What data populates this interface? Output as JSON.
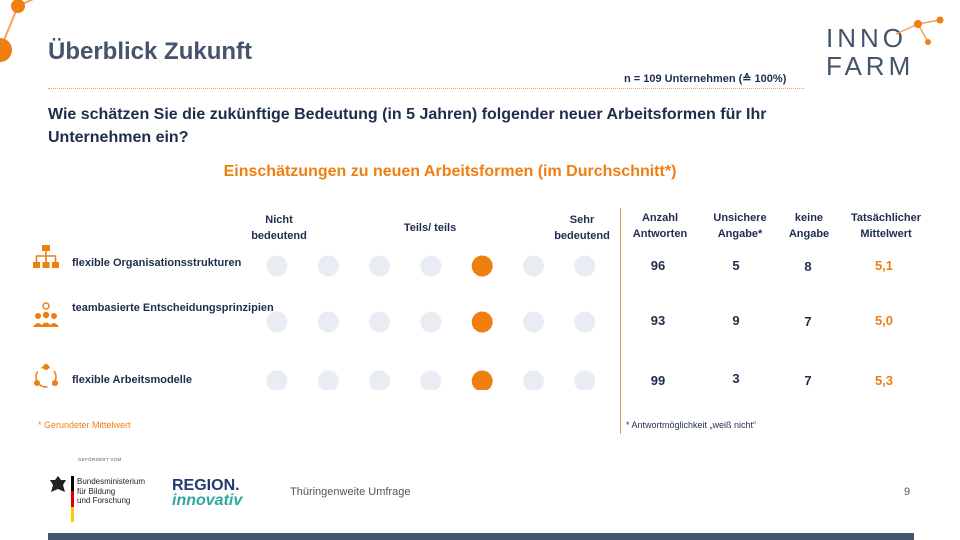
{
  "title": "Überblick Zukunft",
  "sample_note": "n = 109 Unternehmen (≙ 100%)",
  "question": "Wie schätzen Sie die zukünftige Bedeutung (in 5 Jahren) folgender neuer Arbeitsformen für Ihr Unternehmen ein?",
  "logo": {
    "line1": "INNO",
    "line2": "FARM"
  },
  "colors": {
    "accent": "#f07f12",
    "dot_inactive": "#e9ecf3",
    "text_dark": "#1f2d4d",
    "bar": "#44546a"
  },
  "chart_data": {
    "type": "table",
    "title": "Einschätzungen zu neuen Arbeitsformen (im Durchschnitt*)",
    "scale_labels": {
      "low": "Nicht bedeutend",
      "mid": "Teils/ teils",
      "high": "Sehr bedeutend"
    },
    "scale_points": 7,
    "columns": [
      "Anzahl Antworten",
      "Unsichere Angabe*",
      "keine Angabe",
      "Tatsächlicher Mittelwert"
    ],
    "rows": [
      {
        "label": "flexible Organisationsstrukturen",
        "icon": "org-chart-icon",
        "rounded_mean": 5,
        "answers": "96",
        "unsure": "5",
        "no_answer": "8",
        "mean": "5,1"
      },
      {
        "label": "teambasierte Entscheidungsprinzipien",
        "icon": "team-icon",
        "rounded_mean": 5,
        "answers": "93",
        "unsure": "9",
        "no_answer": "7",
        "mean": "5,0"
      },
      {
        "label": "flexible Arbeitsmodelle",
        "icon": "cycle-people-icon",
        "rounded_mean": 5,
        "answers": "99",
        "unsure": "3",
        "no_answer": "7",
        "mean": "5,3"
      }
    ]
  },
  "footnote_left": "* Gerundeter Mittelwert",
  "footnote_right": "* Antwortmöglichkeit „weiß nicht“",
  "footer": {
    "funded_by": "GEFÖRDERT VOM",
    "ministry": "Bundesministerium für Bildung und Forschung",
    "ministry_lines": [
      "Bundesministerium",
      "für Bildung",
      "und Forschung"
    ],
    "region_logo": [
      "REGION.",
      "innovativ"
    ],
    "text": "Thüringenweite Umfrage",
    "page": "9"
  }
}
